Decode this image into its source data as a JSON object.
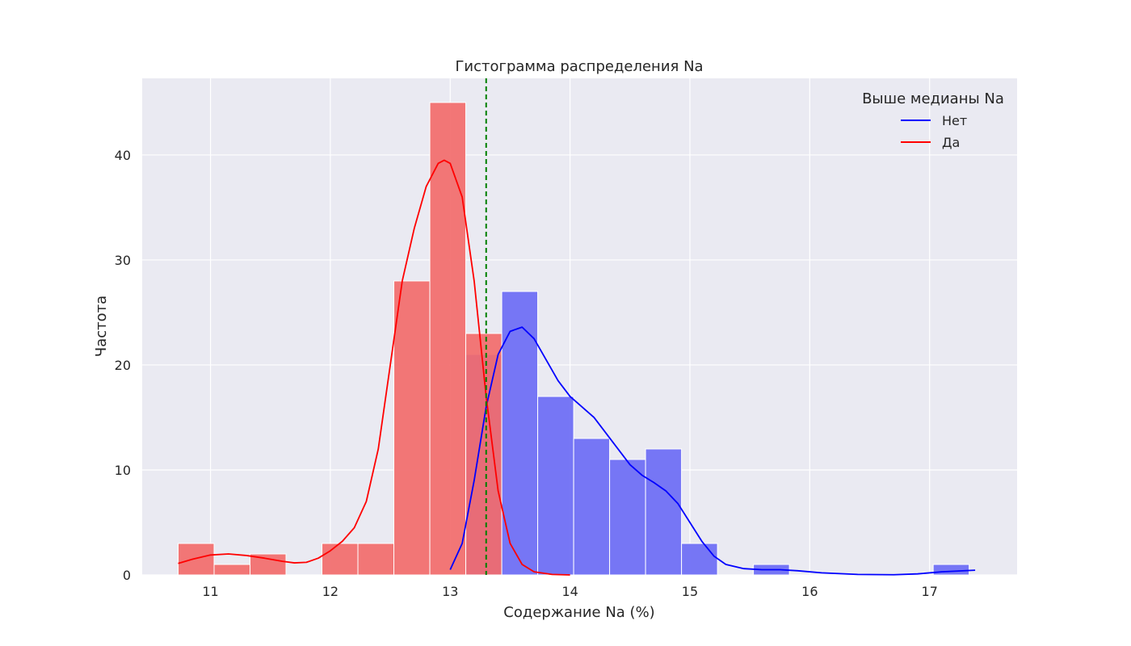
{
  "chart_data": {
    "type": "histogram",
    "title": "Гистограмма распределения Na",
    "xlabel": "Содержание Na (%)",
    "ylabel": "Частота",
    "xlim": [
      10.43,
      17.73
    ],
    "ylim": [
      0,
      47.3
    ],
    "xticks": [
      11,
      12,
      13,
      14,
      15,
      16,
      17
    ],
    "yticks": [
      0,
      10,
      20,
      30,
      40
    ],
    "grid": true,
    "bin_edges": [
      10.73,
      11.03,
      11.33,
      11.63,
      11.93,
      12.23,
      12.53,
      12.83,
      13.13,
      13.43,
      13.73,
      14.03,
      14.33,
      14.63,
      14.93,
      15.23,
      15.53,
      15.83,
      16.13,
      16.43,
      16.73,
      17.03,
      17.33
    ],
    "series": [
      {
        "name": "Нет",
        "color": "#0000ff",
        "bar_color": "#6b6bf5",
        "counts": [
          0,
          0,
          0,
          0,
          0,
          0,
          0,
          0,
          21,
          27,
          17,
          13,
          11,
          12,
          3,
          0,
          1,
          0,
          0,
          0,
          0,
          1
        ],
        "kde": [
          [
            13.0,
            0.5
          ],
          [
            13.1,
            3
          ],
          [
            13.2,
            9
          ],
          [
            13.3,
            16
          ],
          [
            13.4,
            21
          ],
          [
            13.5,
            23.2
          ],
          [
            13.6,
            23.6
          ],
          [
            13.7,
            22.5
          ],
          [
            13.8,
            20.5
          ],
          [
            13.9,
            18.5
          ],
          [
            14.0,
            17
          ],
          [
            14.1,
            16
          ],
          [
            14.2,
            15
          ],
          [
            14.3,
            13.5
          ],
          [
            14.4,
            12
          ],
          [
            14.5,
            10.5
          ],
          [
            14.6,
            9.5
          ],
          [
            14.7,
            8.8
          ],
          [
            14.8,
            8
          ],
          [
            14.9,
            6.8
          ],
          [
            15.0,
            5
          ],
          [
            15.1,
            3.2
          ],
          [
            15.2,
            1.8
          ],
          [
            15.3,
            1.0
          ],
          [
            15.45,
            0.6
          ],
          [
            15.6,
            0.5
          ],
          [
            15.75,
            0.5
          ],
          [
            15.9,
            0.4
          ],
          [
            16.1,
            0.2
          ],
          [
            16.4,
            0.05
          ],
          [
            16.7,
            0.02
          ],
          [
            16.9,
            0.1
          ],
          [
            17.1,
            0.3
          ],
          [
            17.38,
            0.45
          ]
        ]
      },
      {
        "name": "Да",
        "color": "#ff0000",
        "bar_color": "#f26b6b",
        "counts": [
          3,
          1,
          2,
          0,
          3,
          3,
          28,
          45,
          23,
          0,
          0,
          0,
          0,
          0,
          0,
          0,
          0,
          0,
          0,
          0,
          0,
          0
        ],
        "kde": [
          [
            10.73,
            1.1
          ],
          [
            10.85,
            1.5
          ],
          [
            11.0,
            1.9
          ],
          [
            11.15,
            2.0
          ],
          [
            11.3,
            1.85
          ],
          [
            11.45,
            1.6
          ],
          [
            11.6,
            1.3
          ],
          [
            11.7,
            1.15
          ],
          [
            11.8,
            1.2
          ],
          [
            11.9,
            1.6
          ],
          [
            12.0,
            2.3
          ],
          [
            12.1,
            3.2
          ],
          [
            12.2,
            4.5
          ],
          [
            12.3,
            7
          ],
          [
            12.4,
            12
          ],
          [
            12.5,
            20
          ],
          [
            12.6,
            28
          ],
          [
            12.7,
            33
          ],
          [
            12.8,
            37
          ],
          [
            12.9,
            39.2
          ],
          [
            12.95,
            39.5
          ],
          [
            13.0,
            39.2
          ],
          [
            13.1,
            36
          ],
          [
            13.2,
            28
          ],
          [
            13.3,
            17
          ],
          [
            13.4,
            8
          ],
          [
            13.5,
            3
          ],
          [
            13.6,
            1
          ],
          [
            13.7,
            0.3
          ],
          [
            13.85,
            0.05
          ],
          [
            14.0,
            0
          ]
        ]
      }
    ],
    "median_line": {
      "x": 13.3,
      "color": "#008000",
      "style": "dashed"
    },
    "legend": {
      "title": "Выше медианы Na",
      "position": "top-right",
      "entries": [
        {
          "label": "Нет",
          "color": "#0000ff"
        },
        {
          "label": "Да",
          "color": "#ff0000"
        }
      ]
    },
    "colors": {
      "plot_background": "#eaeaf2",
      "grid": "#ffffff"
    }
  }
}
